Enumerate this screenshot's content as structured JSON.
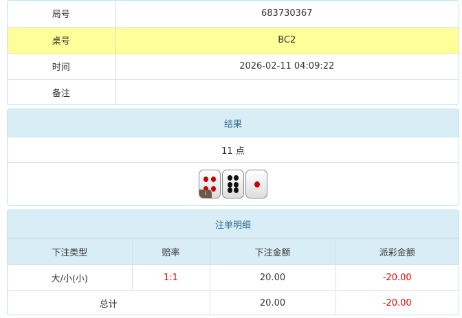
{
  "info": [
    {
      "label": "局号",
      "value": "683730367"
    },
    {
      "label": "桌号",
      "value": "BC2"
    },
    {
      "label": "时间",
      "value": "2026-02-11 04:09:22"
    },
    {
      "label": "备注",
      "value": ""
    }
  ],
  "result": {
    "title": "结果",
    "points": "11 点",
    "dice": [
      4,
      6,
      1
    ],
    "badge": "i"
  },
  "bets": {
    "title": "注单明细",
    "headers": [
      "下注类型",
      "赔率",
      "下注金额",
      "派彩金额"
    ],
    "rows": [
      {
        "type": "大/小(小)",
        "odds": "1:1",
        "amount": "20.00",
        "payout": "-20.00"
      }
    ],
    "total": {
      "label": "总计",
      "amount": "20.00",
      "payout": "-20.00"
    }
  }
}
